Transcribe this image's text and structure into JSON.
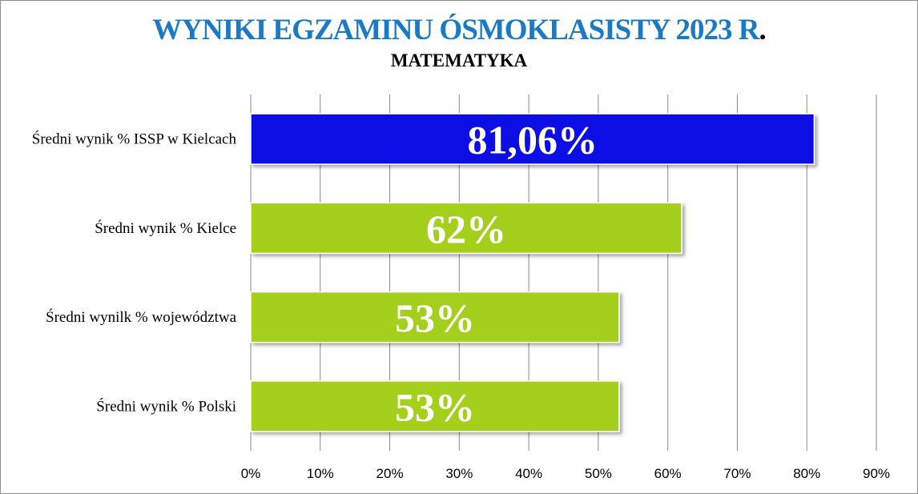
{
  "chart_data": {
    "type": "bar",
    "orientation": "horizontal",
    "title_main": "WYNIKI EGZAMINU ÓSMOKLASISTY 2023 R",
    "title_dot": ".",
    "subtitle": "MATEMATYKA",
    "categories": [
      "Średni wynik % ISSP w Kielcach",
      "Średni wynik % Kielce",
      "Średni wynilk % województwa",
      "Średni wynik % Polski"
    ],
    "values": [
      81.06,
      62,
      53,
      53
    ],
    "data_labels": [
      "81,06%",
      "62%",
      "53%",
      "53%"
    ],
    "bar_colors": [
      "#0f0fe6",
      "#a4cf1e",
      "#a4cf1e",
      "#a4cf1e"
    ],
    "xlim": [
      0,
      90
    ],
    "x_ticks": [
      "0%",
      "10%",
      "20%",
      "30%",
      "40%",
      "50%",
      "60%",
      "70%",
      "80%",
      "90%"
    ],
    "grid": true,
    "legend": "none"
  },
  "colors": {
    "title": "#1a7ac4",
    "title_dot": "#000000",
    "gridline": "#8a8a8a",
    "axis": "#8a8a8a"
  }
}
